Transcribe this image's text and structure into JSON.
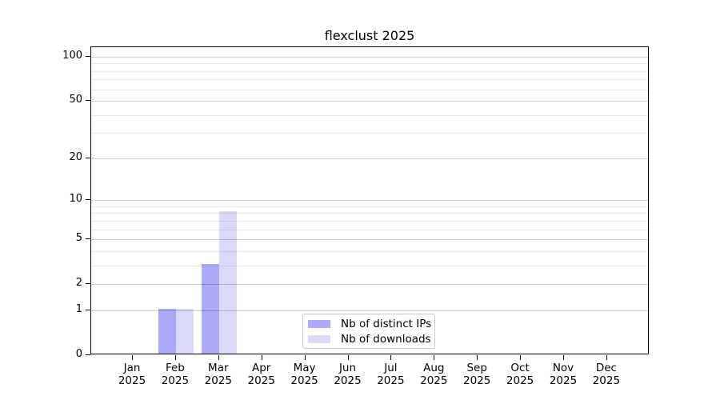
{
  "chart_data": {
    "type": "bar",
    "title": "flexclust 2025",
    "categories": [
      "Jan",
      "Feb",
      "Mar",
      "Apr",
      "May",
      "Jun",
      "Jul",
      "Aug",
      "Sep",
      "Oct",
      "Nov",
      "Dec"
    ],
    "x_tick_year": "2025",
    "series": [
      {
        "name": "Nb of distinct IPs",
        "color": "#aaaaf8",
        "values": [
          0,
          1,
          3,
          0,
          0,
          0,
          0,
          0,
          0,
          0,
          0,
          0
        ]
      },
      {
        "name": "Nb of downloads",
        "color": "#dadaf8",
        "values": [
          0,
          1,
          8,
          0,
          0,
          0,
          0,
          0,
          0,
          0,
          0,
          0
        ]
      }
    ],
    "y_scale": "log1p",
    "y_ticks": [
      0,
      1,
      2,
      5,
      10,
      20,
      50,
      100
    ],
    "y_minor_gridlines": [
      3,
      4,
      6,
      7,
      8,
      9,
      30,
      40,
      60,
      70,
      80,
      90
    ],
    "ylim": [
      0,
      116
    ],
    "grid": "horizontal",
    "legend_position": "inside-bottom-center",
    "axis_color": "#000000",
    "background_color": "#ffffff"
  }
}
